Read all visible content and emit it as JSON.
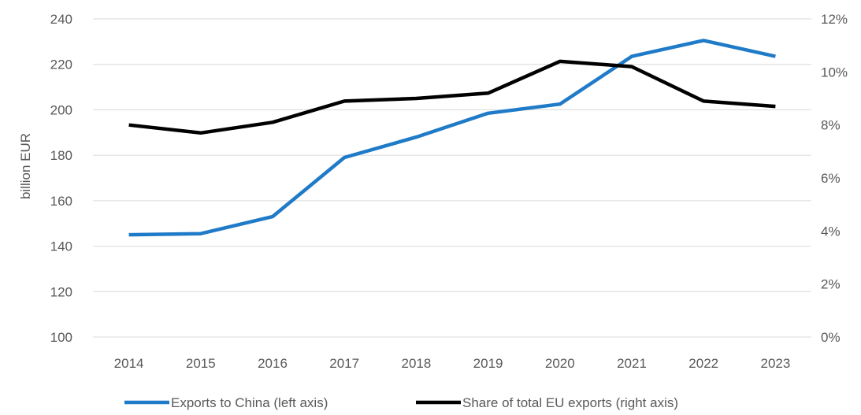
{
  "chart_data": {
    "type": "line",
    "categories": [
      "2014",
      "2015",
      "2016",
      "2017",
      "2018",
      "2019",
      "2020",
      "2021",
      "2022",
      "2023"
    ],
    "ylabel": "billion EUR",
    "ylim": [
      100,
      240
    ],
    "yticks": [
      "100",
      "120",
      "140",
      "160",
      "180",
      "200",
      "220",
      "240"
    ],
    "y2lim": [
      0,
      12
    ],
    "y2ticks": [
      "0%",
      "2%",
      "4%",
      "6%",
      "8%",
      "10%",
      "12%"
    ],
    "grid": true,
    "legend_position": "bottom",
    "series": [
      {
        "name": "Exports to China (left axis)",
        "axis": "left",
        "color": "#1f7bc8",
        "values": [
          145,
          145.5,
          153,
          179,
          188,
          198.5,
          202.5,
          223.5,
          230.5,
          223.5
        ]
      },
      {
        "name": "Share of total EU exports (right axis)",
        "axis": "right",
        "color": "#000000",
        "values": [
          8.0,
          7.7,
          8.1,
          8.9,
          9.0,
          9.2,
          10.4,
          10.2,
          8.9,
          8.7
        ]
      }
    ]
  }
}
